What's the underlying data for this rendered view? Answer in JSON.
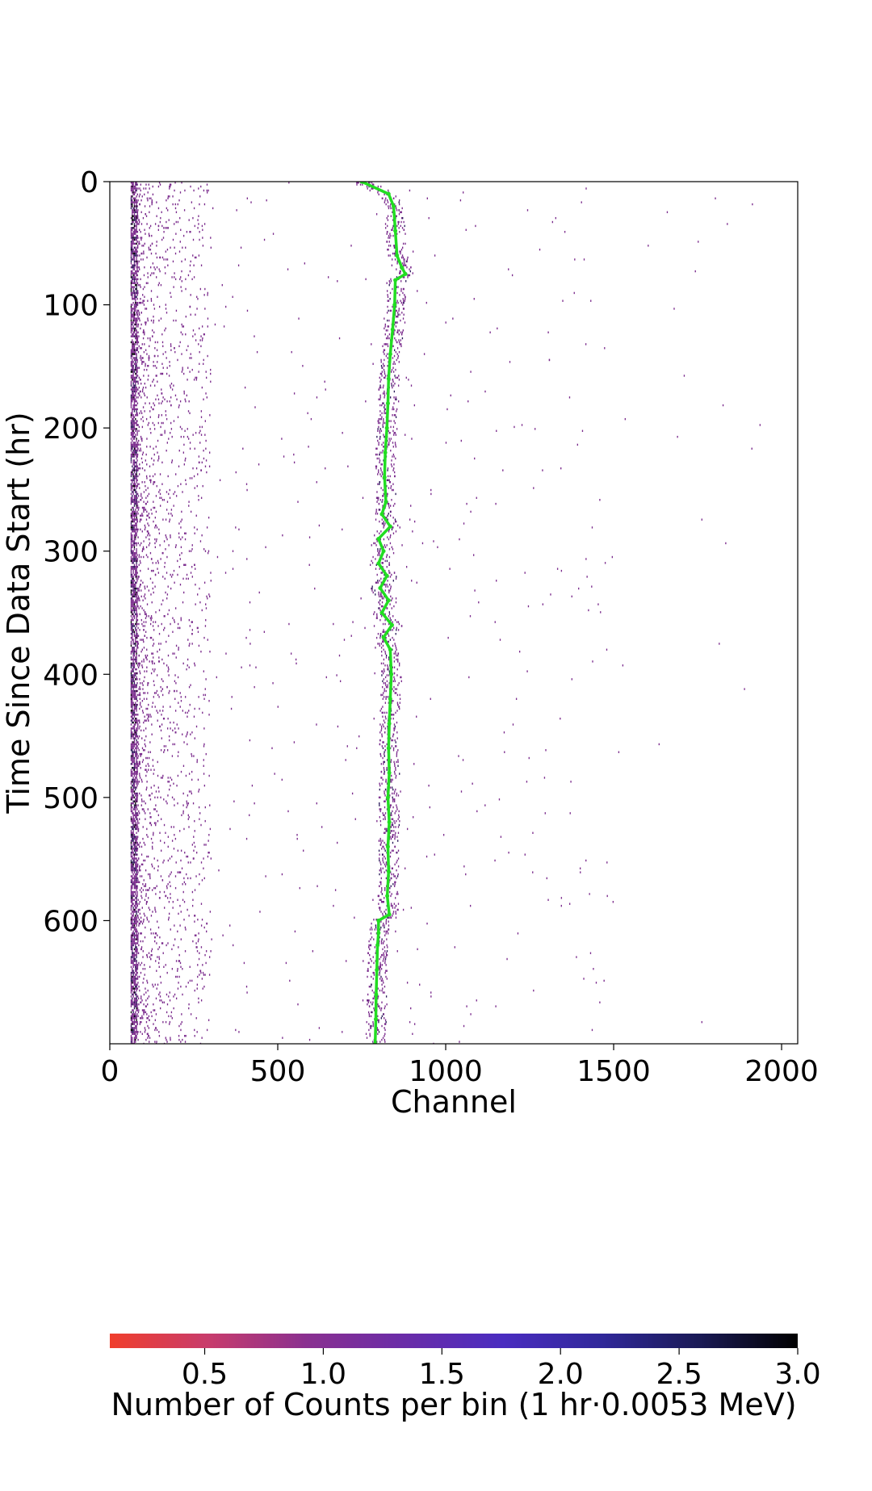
{
  "chart_data": {
    "type": "heatmap",
    "title": "",
    "xlabel": "Channel",
    "ylabel": "Time Since Data Start (hr)",
    "xlim": [
      0,
      2048
    ],
    "ylim": [
      0,
      700
    ],
    "y_inverted": true,
    "xticks": [
      0,
      500,
      1000,
      1500,
      2000
    ],
    "xtick_labels": [
      "0",
      "500",
      "1000",
      "1500",
      "2000"
    ],
    "yticks": [
      0,
      100,
      200,
      300,
      400,
      500,
      600
    ],
    "ytick_labels": [
      "0",
      "100",
      "200",
      "300",
      "400",
      "500",
      "600"
    ],
    "grid": false,
    "features": {
      "low_channel_band": {
        "channel_range": [
          62,
          80
        ],
        "time_range": [
          0,
          700
        ],
        "description_value_max": 3.0
      },
      "low_channel_tail": {
        "channel_range": [
          80,
          300
        ]
      },
      "background_sparse_counts": {
        "channel_range": [
          80,
          2048
        ]
      }
    },
    "peak_track": {
      "name": "",
      "color": "#22dd22",
      "time": [
        0,
        10,
        20,
        40,
        60,
        70,
        75,
        80,
        100,
        120,
        140,
        160,
        180,
        200,
        220,
        240,
        260,
        270,
        280,
        290,
        300,
        310,
        320,
        330,
        340,
        350,
        360,
        370,
        380,
        400,
        420,
        440,
        460,
        480,
        500,
        520,
        540,
        560,
        580,
        595,
        600,
        610,
        620,
        640,
        660,
        680,
        700
      ],
      "channel": [
        750,
        830,
        845,
        850,
        855,
        870,
        880,
        850,
        848,
        842,
        835,
        830,
        828,
        825,
        820,
        818,
        822,
        810,
        835,
        800,
        815,
        800,
        825,
        805,
        830,
        810,
        840,
        815,
        835,
        838,
        835,
        832,
        830,
        832,
        828,
        832,
        828,
        830,
        826,
        832,
        800,
        800,
        797,
        795,
        793,
        792,
        790
      ]
    },
    "colorbar": {
      "title": "Number of Counts per bin (1 hr·0.0053 MeV)",
      "min": 0.1,
      "max": 3.0,
      "ticks": [
        0.5,
        1.0,
        1.5,
        2.0,
        2.5,
        3.0
      ],
      "tick_labels": [
        "0.5",
        "1.0",
        "1.5",
        "2.0",
        "2.5",
        "3.0"
      ],
      "colors": [
        "#f03e2c",
        "#c83c6c",
        "#8a3090",
        "#6a2ca8",
        "#4a2cc0",
        "#30289a",
        "#1a1a55",
        "#000000"
      ],
      "orientation": "horizontal",
      "placement": "bottom"
    }
  }
}
